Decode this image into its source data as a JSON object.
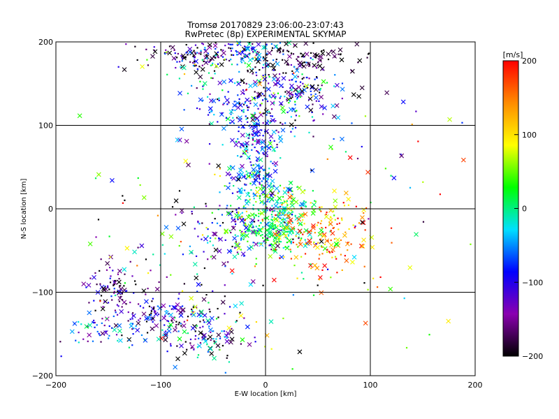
{
  "chart_data": {
    "type": "scatter",
    "title": "Tromsø 20170829 23:06:00-23:07:43",
    "subtitle": "RwPretec (8p) EXPERIMENTAL SKYMAP",
    "xlabel": "E-W location [km]",
    "ylabel": "N-S location [km]",
    "xlim": [
      -200,
      200
    ],
    "ylim": [
      -200,
      200
    ],
    "xticks": [
      -200,
      -100,
      0,
      100,
      200
    ],
    "yticks": [
      -200,
      -100,
      0,
      100,
      200
    ],
    "x_tick_labels": [
      "−200",
      "−100",
      "0",
      "100",
      "200"
    ],
    "y_tick_labels": [
      "−200",
      "−100",
      "0",
      "100",
      "200"
    ],
    "grid": true,
    "marker_types": [
      "dot",
      "cross"
    ],
    "colorbar": {
      "label": "[m/s]",
      "range": [
        -200,
        200
      ],
      "ticks": [
        200,
        100,
        0,
        -100,
        -200
      ],
      "tick_labels": [
        "200",
        "100",
        "0",
        "−100",
        "−200"
      ],
      "colors": [
        "#000000",
        "#8a00b0",
        "#0000ff",
        "#00e0ff",
        "#00ff00",
        "#ffff00",
        "#ff8c00",
        "#ff0000"
      ]
    },
    "clusters": [
      {
        "x": -60,
        "y": 185,
        "sx": 25,
        "sy": 12,
        "n": 130,
        "v": -170,
        "sv": 60
      },
      {
        "x": 30,
        "y": 180,
        "sx": 30,
        "sy": 12,
        "n": 110,
        "v": -195,
        "sv": 30
      },
      {
        "x": -20,
        "y": 190,
        "sx": 18,
        "sy": 8,
        "n": 70,
        "v": -60,
        "sv": 40
      },
      {
        "x": -40,
        "y": 170,
        "sx": 30,
        "sy": 12,
        "n": 50,
        "v": -30,
        "sv": 80
      },
      {
        "x": 15,
        "y": 135,
        "sx": 30,
        "sy": 20,
        "n": 230,
        "v": -120,
        "sv": 70
      },
      {
        "x": -20,
        "y": 120,
        "sx": 25,
        "sy": 18,
        "n": 90,
        "v": -70,
        "sv": 50
      },
      {
        "x": -8,
        "y": 80,
        "sx": 12,
        "sy": 15,
        "n": 110,
        "v": -80,
        "sv": 50
      },
      {
        "x": -10,
        "y": 35,
        "sx": 12,
        "sy": 12,
        "n": 110,
        "v": -60,
        "sv": 50
      },
      {
        "x": 10,
        "y": 0,
        "sx": 20,
        "sy": 15,
        "n": 160,
        "v": 20,
        "sv": 40
      },
      {
        "x": 10,
        "y": -30,
        "sx": 18,
        "sy": 12,
        "n": 170,
        "v": 10,
        "sv": 30
      },
      {
        "x": 50,
        "y": -30,
        "sx": 25,
        "sy": 25,
        "n": 160,
        "v": 140,
        "sv": 50
      },
      {
        "x": -30,
        "y": -30,
        "sx": 25,
        "sy": 20,
        "n": 120,
        "v": -100,
        "sv": 60
      },
      {
        "x": -145,
        "y": -95,
        "sx": 12,
        "sy": 18,
        "n": 90,
        "v": -160,
        "sv": 60
      },
      {
        "x": -100,
        "y": -130,
        "sx": 18,
        "sy": 15,
        "n": 110,
        "v": -120,
        "sv": 60
      },
      {
        "x": -150,
        "y": -145,
        "sx": 20,
        "sy": 10,
        "n": 60,
        "v": -80,
        "sv": 60
      },
      {
        "x": -55,
        "y": -150,
        "sx": 20,
        "sy": 20,
        "n": 120,
        "v": -100,
        "sv": 100
      },
      {
        "x": -75,
        "y": -60,
        "sx": 35,
        "sy": 35,
        "n": 50,
        "v": -60,
        "sv": 120
      },
      {
        "x": 0,
        "y": 0,
        "sx": 100,
        "sy": 100,
        "n": 170,
        "v": 0,
        "sv": 140
      }
    ]
  }
}
